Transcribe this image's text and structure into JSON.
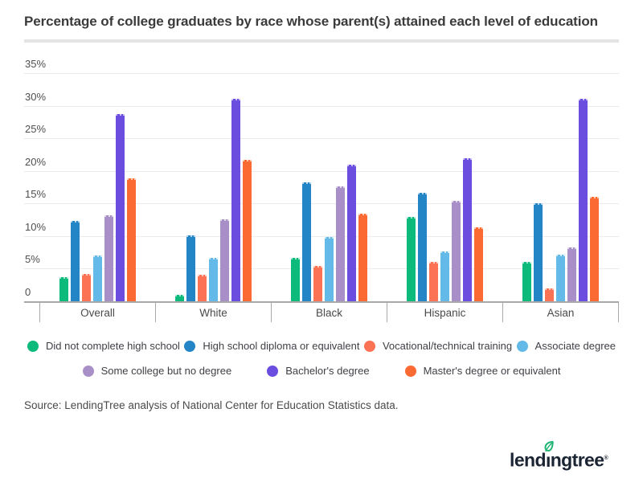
{
  "header": {
    "title": "Percentage of college graduates by race whose parent(s) attained each level of education"
  },
  "chart_data": {
    "type": "bar",
    "title": "Percentage of college graduates by race whose parent(s) attained each level of education",
    "categories": [
      "Overall",
      "White",
      "Black",
      "Hispanic",
      "Asian"
    ],
    "series": [
      {
        "name": "Did not complete high school",
        "color": "#0cbb7b",
        "values": [
          3.7,
          1.0,
          6.7,
          13.0,
          6.0
        ]
      },
      {
        "name": "High school diploma or equivalent",
        "color": "#2385c6",
        "values": [
          12.3,
          10.1,
          18.2,
          16.6,
          15.0
        ]
      },
      {
        "name": "Vocational/technical training",
        "color": "#fc7254",
        "values": [
          4.2,
          4.1,
          5.4,
          6.1,
          2.0
        ]
      },
      {
        "name": "Associate degree",
        "color": "#63bae8",
        "values": [
          7.0,
          6.6,
          9.8,
          7.6,
          7.1
        ]
      },
      {
        "name": "Some college but no degree",
        "color": "#a98fc8",
        "values": [
          13.2,
          12.6,
          17.6,
          15.4,
          8.3
        ]
      },
      {
        "name": "Bachelor's degree",
        "color": "#6b4ee0",
        "values": [
          28.7,
          31.0,
          21.0,
          22.0,
          31.0
        ]
      },
      {
        "name": "Master's degree or equivalent",
        "color": "#fc6a34",
        "values": [
          18.8,
          21.7,
          13.4,
          11.4,
          16.0
        ]
      }
    ],
    "y_ticks": [
      "0",
      "5%",
      "10%",
      "15%",
      "20%",
      "25%",
      "30%",
      "35%"
    ],
    "ylim": [
      0,
      35
    ],
    "grid": true,
    "legend_position": "bottom",
    "legend_rows": [
      [
        0,
        1,
        2,
        3
      ],
      [
        4,
        5,
        6
      ]
    ],
    "xlabel": "",
    "ylabel": ""
  },
  "source": {
    "text": "Source: LendingTree analysis of National Center for Education Statistics data."
  },
  "logo": {
    "text": "lendingtree",
    "trademark": "®",
    "navy": "#1b2433",
    "green": "#21b573"
  }
}
